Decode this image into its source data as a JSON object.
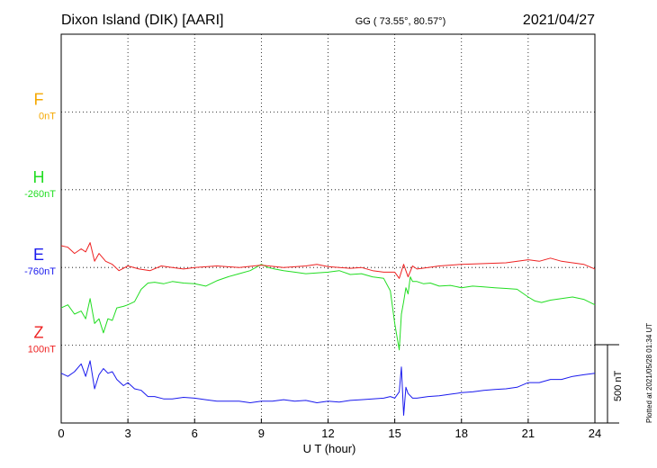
{
  "header": {
    "station": "Dixon Island (DIK)  [AARI]",
    "coords": "GG ( 73.55°,  80.57°)",
    "date": "2021/04/27"
  },
  "side_note": "Plotted at 2021/05/28 01:34 UT",
  "chart_data": {
    "type": "line",
    "title": "Dixon Island (DIK)  [AARI]",
    "xlabel": "U T (hour)",
    "xlim": [
      0,
      24
    ],
    "x_ticks": [
      0,
      3,
      6,
      9,
      12,
      15,
      18,
      21,
      24
    ],
    "ylim_nT": [
      -1000,
      1500
    ],
    "grid": true,
    "scale_bar": {
      "label": "500 nT",
      "value": 500
    },
    "baselines": [
      {
        "letter": "F",
        "offset_label": "0nT",
        "color": "#f5a800"
      },
      {
        "letter": "H",
        "offset_label": "-260nT",
        "color": "#22dd22"
      },
      {
        "letter": "E",
        "offset_label": "-760nT",
        "color": "#1a1aee"
      },
      {
        "letter": "Z",
        "offset_label": "100nT",
        "color": "#ee2222"
      }
    ],
    "series": [
      {
        "key": "H",
        "color": "#22dd22",
        "x": [
          0,
          0.3,
          0.6,
          0.9,
          1.1,
          1.3,
          1.5,
          1.7,
          1.9,
          2.1,
          2.3,
          2.5,
          2.8,
          3.0,
          3.3,
          3.6,
          3.9,
          4.2,
          4.6,
          5.0,
          5.5,
          6.0,
          6.5,
          7.0,
          7.5,
          8.0,
          8.5,
          9.0,
          9.3,
          9.6,
          10.0,
          10.5,
          11.0,
          11.5,
          12.0,
          12.5,
          13.0,
          13.5,
          14.0,
          14.5,
          14.8,
          15.0,
          15.2,
          15.3,
          15.4,
          15.5,
          15.6,
          15.7,
          15.8,
          16.0,
          16.3,
          16.6,
          17.0,
          17.5,
          18.0,
          18.5,
          19.0,
          19.5,
          20.0,
          20.5,
          21.0,
          21.3,
          21.6,
          22.0,
          22.5,
          23.0,
          23.5,
          24.0
        ],
        "values": [
          -260,
          -240,
          -300,
          -280,
          -330,
          -200,
          -360,
          -330,
          -420,
          -330,
          -340,
          -260,
          -250,
          -240,
          -220,
          -140,
          -100,
          -95,
          -105,
          -90,
          -100,
          -105,
          -120,
          -85,
          -60,
          -40,
          -20,
          20,
          0,
          -10,
          -20,
          -30,
          -40,
          -35,
          -30,
          -20,
          -45,
          -40,
          -60,
          -70,
          -150,
          -360,
          -530,
          -300,
          -220,
          -130,
          -170,
          -60,
          -90,
          -90,
          -105,
          -100,
          -120,
          -115,
          -130,
          -120,
          -125,
          -130,
          -135,
          -140,
          -190,
          -215,
          -225,
          -210,
          -200,
          -190,
          -205,
          -240
        ]
      },
      {
        "key": "E",
        "color": "#1a1aee",
        "x": [
          0,
          0.3,
          0.6,
          0.9,
          1.1,
          1.3,
          1.5,
          1.7,
          1.9,
          2.1,
          2.3,
          2.5,
          2.8,
          3.0,
          3.3,
          3.6,
          3.9,
          4.2,
          4.6,
          5.0,
          5.5,
          6.0,
          6.5,
          7.0,
          7.5,
          8.0,
          8.5,
          9.0,
          9.5,
          10.0,
          10.5,
          11.0,
          11.5,
          12.0,
          12.5,
          13.0,
          13.5,
          14.0,
          14.5,
          14.8,
          15.0,
          15.2,
          15.3,
          15.4,
          15.5,
          15.6,
          15.8,
          16.0,
          16.5,
          17.0,
          17.5,
          18.0,
          18.5,
          19.0,
          19.5,
          20.0,
          20.5,
          21.0,
          21.5,
          22.0,
          22.5,
          23.0,
          23.5,
          24.0
        ],
        "values": [
          -680,
          -700,
          -670,
          -620,
          -700,
          -600,
          -780,
          -690,
          -650,
          -680,
          -670,
          -720,
          -760,
          -740,
          -780,
          -790,
          -830,
          -830,
          -845,
          -845,
          -835,
          -840,
          -850,
          -860,
          -860,
          -860,
          -870,
          -860,
          -860,
          -850,
          -860,
          -855,
          -870,
          -860,
          -865,
          -855,
          -850,
          -845,
          -840,
          -830,
          -840,
          -800,
          -640,
          -950,
          -770,
          -810,
          -840,
          -840,
          -830,
          -825,
          -815,
          -805,
          -800,
          -790,
          -785,
          -780,
          -770,
          -740,
          -740,
          -720,
          -720,
          -700,
          -690,
          -680
        ]
      },
      {
        "key": "Z",
        "color": "#ee2222",
        "x": [
          0,
          0.3,
          0.6,
          0.9,
          1.1,
          1.3,
          1.5,
          1.7,
          2.0,
          2.3,
          2.6,
          3.0,
          3.5,
          4.0,
          4.5,
          5.0,
          5.5,
          6.0,
          7.0,
          8.0,
          9.0,
          10.0,
          11.0,
          11.5,
          12.0,
          13.0,
          13.5,
          14.0,
          14.5,
          15.0,
          15.2,
          15.4,
          15.6,
          15.8,
          16.0,
          16.5,
          17.0,
          18.0,
          19.0,
          20.0,
          21.0,
          21.5,
          22.0,
          22.5,
          23.0,
          23.5,
          24.0
        ],
        "values": [
          140,
          130,
          90,
          120,
          100,
          160,
          40,
          90,
          40,
          20,
          -20,
          10,
          -10,
          -20,
          10,
          0,
          -10,
          0,
          10,
          0,
          15,
          0,
          10,
          20,
          5,
          -5,
          0,
          -20,
          -30,
          -30,
          -70,
          20,
          -60,
          10,
          -10,
          0,
          10,
          20,
          25,
          30,
          50,
          40,
          60,
          40,
          30,
          20,
          -10
        ]
      }
    ]
  }
}
